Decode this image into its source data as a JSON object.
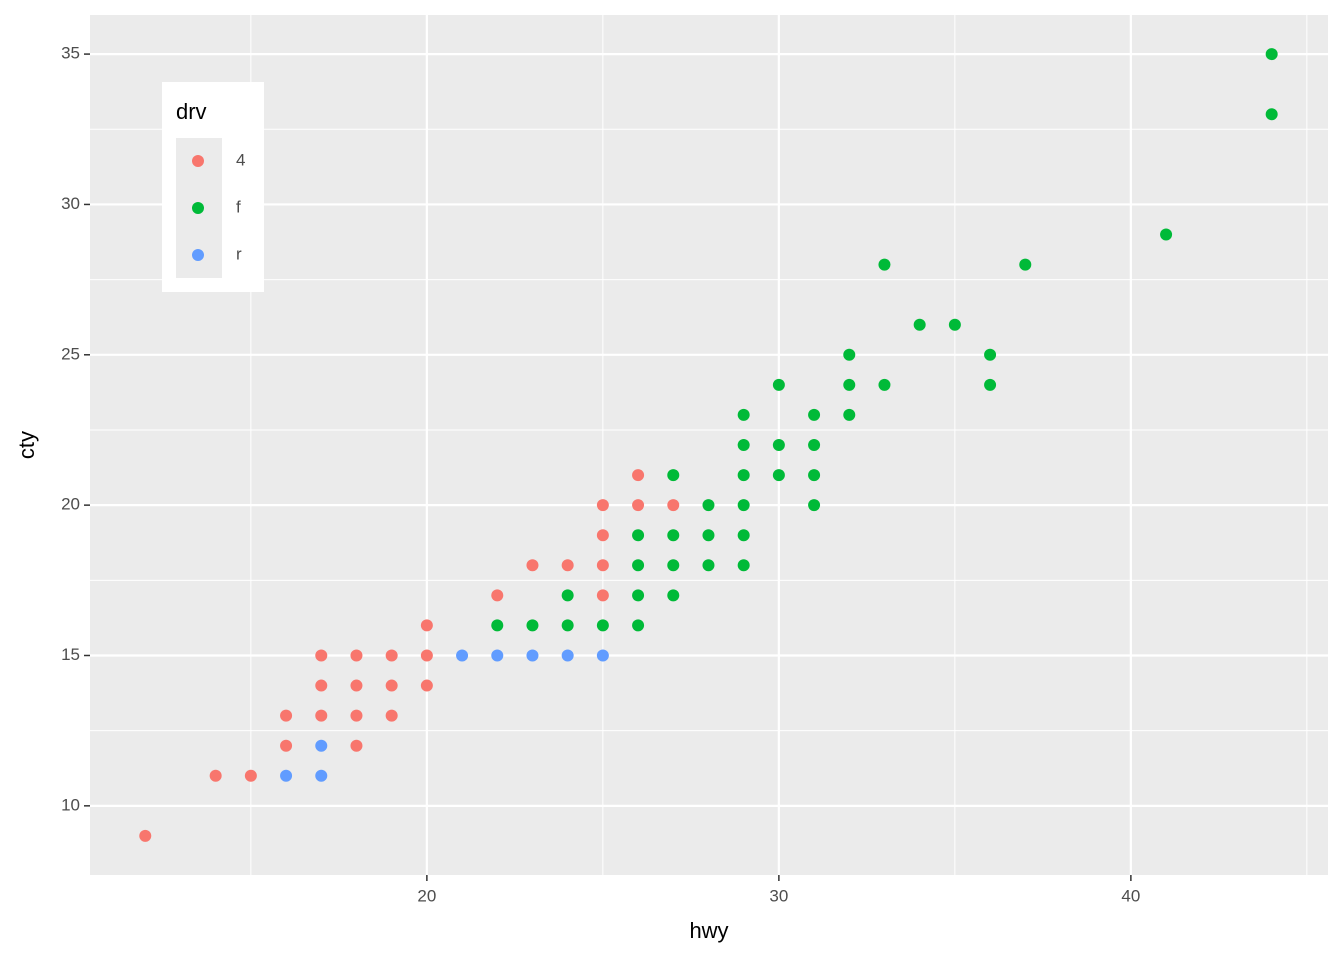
{
  "chart_data": {
    "type": "scatter",
    "x_label": "hwy",
    "y_label": "cty",
    "legend_title": "drv",
    "xlim": [
      10.43,
      45.6
    ],
    "ylim": [
      7.7,
      36.3
    ],
    "xticks": [
      20,
      30,
      40
    ],
    "yticks": [
      10,
      15,
      20,
      25,
      30,
      35
    ],
    "xminor": [
      15,
      25,
      35,
      45
    ],
    "yminor": [
      12.5,
      17.5,
      22.5,
      27.5,
      32.5
    ],
    "grid": true,
    "legend": "top-left",
    "series": [
      {
        "name": "4",
        "color": "#f8766d",
        "x": [
          12,
          14,
          15,
          16,
          16,
          17,
          17,
          17,
          18,
          18,
          18,
          18,
          19,
          19,
          19,
          20,
          20,
          20,
          22,
          23,
          24,
          25,
          25,
          25,
          25,
          26,
          26,
          27
        ],
        "values": [
          9,
          11,
          11,
          13,
          12,
          15,
          14,
          13,
          15,
          14,
          13,
          12,
          15,
          14,
          13,
          16,
          15,
          14,
          17,
          18,
          18,
          20,
          19,
          18,
          17,
          21,
          20,
          20
        ]
      },
      {
        "name": "f",
        "color": "#00ba38",
        "x": [
          22,
          23,
          24,
          24,
          25,
          26,
          26,
          26,
          26,
          27,
          27,
          27,
          27,
          28,
          28,
          28,
          29,
          29,
          29,
          29,
          29,
          29,
          30,
          30,
          30,
          31,
          31,
          31,
          31,
          32,
          32,
          32,
          33,
          33,
          34,
          35,
          36,
          36,
          37,
          41,
          44,
          44
        ],
        "values": [
          16,
          16,
          17,
          16,
          16,
          19,
          18,
          17,
          16,
          21,
          19,
          18,
          17,
          20,
          19,
          18,
          23,
          22,
          21,
          20,
          19,
          18,
          24,
          22,
          21,
          23,
          22,
          21,
          20,
          25,
          24,
          23,
          28,
          24,
          26,
          26,
          25,
          24,
          28,
          29,
          35,
          33
        ]
      },
      {
        "name": "r",
        "color": "#619cff",
        "x": [
          16,
          17,
          17,
          21,
          22,
          23,
          24,
          25
        ],
        "values": [
          11,
          12,
          11,
          15,
          15,
          15,
          15,
          15
        ]
      }
    ]
  }
}
